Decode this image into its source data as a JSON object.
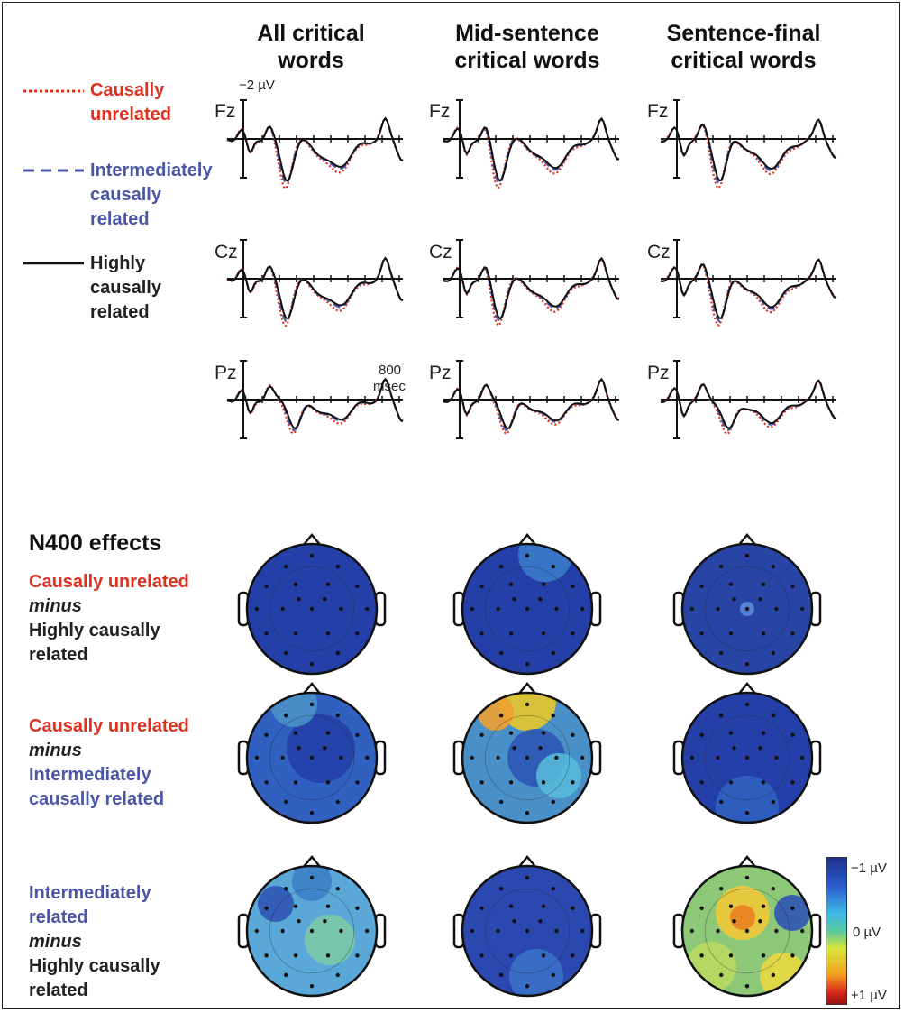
{
  "columns": [
    {
      "line1": "All critical",
      "line2": "words"
    },
    {
      "line1": "Mid-sentence",
      "line2": "critical words"
    },
    {
      "line1": "Sentence-final",
      "line2": "critical words"
    }
  ],
  "legend": {
    "unrelated": {
      "line1": "Causally",
      "line2": "unrelated",
      "color": "#e0301e"
    },
    "intermediate": {
      "line1": "Intermediately",
      "line2": "causally",
      "line3": "related",
      "color": "#4a56a6"
    },
    "high": {
      "line1": "Highly",
      "line2": "causally",
      "line3": "related",
      "color": "#111111"
    }
  },
  "scale": {
    "amplitude": "−2 µV",
    "time_value": "800",
    "time_unit": "msec"
  },
  "channels": [
    "Fz",
    "Cz",
    "Pz"
  ],
  "effects": {
    "title": "N400 effects",
    "minus": "minus",
    "rows": [
      {
        "a": "Causally unrelated",
        "b1": "Highly causally",
        "b2": "related"
      },
      {
        "a": "Causally unrelated",
        "b1": "Intermediately",
        "b2": "causally related"
      },
      {
        "a1": "Intermediately",
        "a2": "related",
        "b1": "Highly causally",
        "b2": "related"
      }
    ]
  },
  "colorbar": {
    "top": "−1 µV",
    "mid": "0 µV",
    "bottom": "+1 µV",
    "colors": [
      "#1e2f8c",
      "#2b5fd0",
      "#3fb9e6",
      "#58c8a0",
      "#d8e63a",
      "#f5a020",
      "#d8281a",
      "#9a1010"
    ]
  }
}
